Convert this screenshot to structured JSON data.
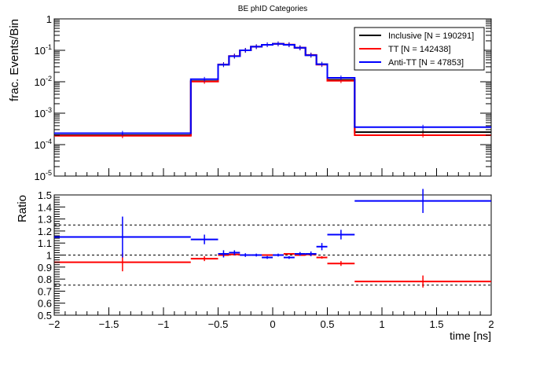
{
  "chart_data": [
    {
      "type": "line",
      "title": "BE phID Categories",
      "xlabel": "",
      "ylabel": "frac. Events/Bin",
      "xlim": [
        -2,
        2
      ],
      "ylim": [
        1e-05,
        1
      ],
      "yscale": "log",
      "y_tick_labels": [
        {
          "base": "10",
          "exp": "-5",
          "value": 1e-05
        },
        {
          "base": "10",
          "exp": "-4",
          "value": 0.0001
        },
        {
          "base": "10",
          "exp": "-3",
          "value": 0.001
        },
        {
          "base": "10",
          "exp": "-2",
          "value": 0.01
        },
        {
          "base": "10",
          "exp": "-1",
          "value": 0.1
        },
        {
          "base": "1",
          "exp": "",
          "value": 1
        }
      ],
      "legend_placement": "top-right",
      "bin_edges": [
        -2,
        -0.75,
        -0.5,
        -0.4,
        -0.3,
        -0.2,
        -0.1,
        0,
        0.1,
        0.2,
        0.3,
        0.4,
        0.5,
        0.75,
        2
      ],
      "series": [
        {
          "name": "Inclusive [N = 190291]",
          "color": "#000000",
          "values": [
            0.0002,
            0.0105,
            0.035,
            0.065,
            0.1,
            0.13,
            0.15,
            0.16,
            0.15,
            0.12,
            0.07,
            0.036,
            0.0115,
            0.00025
          ]
        },
        {
          "name": "TT [N = 142438]",
          "color": "#ff0000",
          "values": [
            0.00019,
            0.0102,
            0.0355,
            0.066,
            0.1,
            0.13,
            0.15,
            0.16,
            0.152,
            0.12,
            0.071,
            0.035,
            0.0107,
            0.0002
          ]
        },
        {
          "name": "Anti-TT [N = 47853]",
          "color": "#0000ff",
          "values": [
            0.00023,
            0.012,
            0.035,
            0.065,
            0.1,
            0.13,
            0.15,
            0.16,
            0.15,
            0.12,
            0.07,
            0.036,
            0.0133,
            0.00036
          ]
        }
      ]
    },
    {
      "type": "scatter",
      "xlabel": "time [ns]",
      "ylabel": "Ratio",
      "xlim": [
        -2,
        2
      ],
      "ylim": [
        0.5,
        1.5
      ],
      "x_ticks": [
        -2,
        -1.5,
        -1,
        -0.5,
        0,
        0.5,
        1,
        1.5,
        2
      ],
      "x_tick_labels": [
        "−2",
        "−1.5",
        "−1",
        "−0.5",
        "0",
        "0.5",
        "1",
        "1.5",
        "2"
      ],
      "y_ticks": [
        0.5,
        0.6,
        0.7,
        0.8,
        0.9,
        1,
        1.1,
        1.2,
        1.3,
        1.4,
        1.5
      ],
      "y_tick_labels": [
        "0.5",
        "0.6",
        "0.7",
        "0.8",
        "0.9",
        "1",
        "1.1",
        "1.2",
        "1.3",
        "1.4",
        "1.5"
      ],
      "reference_lines": [
        0.75,
        1.0,
        1.25
      ],
      "series": [
        {
          "name": "TT",
          "color": "#ff0000",
          "points": [
            {
              "x": -1.375,
              "xerr": 0.625,
              "y": 0.94,
              "yerr": 0.075
            },
            {
              "x": -0.625,
              "xerr": 0.125,
              "y": 0.97,
              "yerr": 0.02
            },
            {
              "x": -0.45,
              "xerr": 0.05,
              "y": 1.0,
              "yerr": 0.01
            },
            {
              "x": -0.35,
              "xerr": 0.05,
              "y": 1.005,
              "yerr": 0.008
            },
            {
              "x": -0.25,
              "xerr": 0.05,
              "y": 1.0,
              "yerr": 0.006
            },
            {
              "x": -0.15,
              "xerr": 0.05,
              "y": 1.0,
              "yerr": 0.005
            },
            {
              "x": -0.05,
              "xerr": 0.05,
              "y": 1.0,
              "yerr": 0.005
            },
            {
              "x": 0.05,
              "xerr": 0.05,
              "y": 1.0,
              "yerr": 0.005
            },
            {
              "x": 0.15,
              "xerr": 0.05,
              "y": 1.01,
              "yerr": 0.005
            },
            {
              "x": 0.25,
              "xerr": 0.05,
              "y": 1.0,
              "yerr": 0.006
            },
            {
              "x": 0.35,
              "xerr": 0.05,
              "y": 1.005,
              "yerr": 0.008
            },
            {
              "x": 0.45,
              "xerr": 0.05,
              "y": 0.98,
              "yerr": 0.01
            },
            {
              "x": 0.625,
              "xerr": 0.125,
              "y": 0.93,
              "yerr": 0.02
            },
            {
              "x": 1.375,
              "xerr": 0.625,
              "y": 0.78,
              "yerr": 0.05
            }
          ]
        },
        {
          "name": "Anti-TT",
          "color": "#0000ff",
          "points": [
            {
              "x": -1.375,
              "xerr": 0.625,
              "y": 1.15,
              "yerr": 0.17
            },
            {
              "x": -0.625,
              "xerr": 0.125,
              "y": 1.13,
              "yerr": 0.04
            },
            {
              "x": -0.45,
              "xerr": 0.05,
              "y": 1.01,
              "yerr": 0.03
            },
            {
              "x": -0.35,
              "xerr": 0.05,
              "y": 1.02,
              "yerr": 0.02
            },
            {
              "x": -0.25,
              "xerr": 0.05,
              "y": 1.0,
              "yerr": 0.015
            },
            {
              "x": -0.15,
              "xerr": 0.05,
              "y": 1.0,
              "yerr": 0.012
            },
            {
              "x": -0.05,
              "xerr": 0.05,
              "y": 0.98,
              "yerr": 0.012
            },
            {
              "x": 0.05,
              "xerr": 0.05,
              "y": 1.0,
              "yerr": 0.012
            },
            {
              "x": 0.15,
              "xerr": 0.05,
              "y": 0.98,
              "yerr": 0.012
            },
            {
              "x": 0.25,
              "xerr": 0.05,
              "y": 1.01,
              "yerr": 0.015
            },
            {
              "x": 0.35,
              "xerr": 0.05,
              "y": 1.01,
              "yerr": 0.02
            },
            {
              "x": 0.45,
              "xerr": 0.05,
              "y": 1.07,
              "yerr": 0.03
            },
            {
              "x": 0.625,
              "xerr": 0.125,
              "y": 1.17,
              "yerr": 0.04
            },
            {
              "x": 1.375,
              "xerr": 0.625,
              "y": 1.45,
              "yerr": 0.1
            }
          ]
        }
      ]
    }
  ]
}
